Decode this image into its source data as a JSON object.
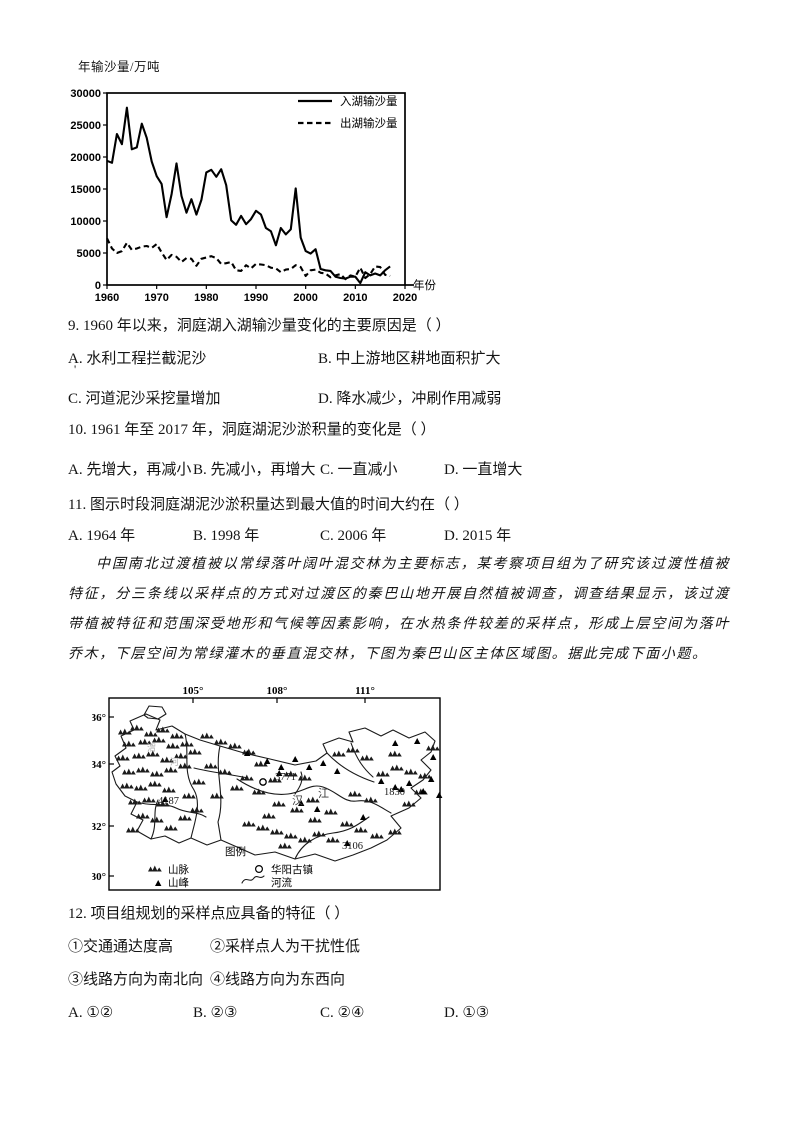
{
  "chart": {
    "ylabel": "年输沙量/万吨",
    "xlabel": "年份",
    "legend": {
      "in": "入湖输沙量",
      "out": "出湖输沙量"
    }
  },
  "chart_data": {
    "type": "line",
    "title": "",
    "xlabel": "年份",
    "ylabel": "年输沙量/万吨",
    "xlim": [
      1960,
      2020
    ],
    "ylim": [
      0,
      30000
    ],
    "x_ticks": [
      1960,
      1970,
      1980,
      1990,
      2000,
      2010,
      2020
    ],
    "y_ticks": [
      0,
      5000,
      10000,
      15000,
      20000,
      25000,
      30000
    ],
    "grid": false,
    "legend_position": "top-right",
    "years": [
      1960,
      1961,
      1962,
      1963,
      1964,
      1965,
      1966,
      1967,
      1968,
      1969,
      1970,
      1971,
      1972,
      1973,
      1974,
      1975,
      1976,
      1977,
      1978,
      1979,
      1980,
      1981,
      1982,
      1983,
      1984,
      1985,
      1986,
      1987,
      1988,
      1989,
      1990,
      1991,
      1992,
      1993,
      1994,
      1995,
      1996,
      1997,
      1998,
      1999,
      2000,
      2001,
      2002,
      2003,
      2004,
      2005,
      2006,
      2007,
      2008,
      2009,
      2010,
      2011,
      2012,
      2013,
      2014,
      2015,
      2016,
      2017
    ],
    "series": [
      {
        "name": "入湖输沙量",
        "style": "solid",
        "values": [
          19400,
          19100,
          23600,
          22000,
          27700,
          21200,
          21500,
          25200,
          23000,
          19300,
          17000,
          15800,
          10600,
          14200,
          19000,
          13900,
          11300,
          13400,
          11000,
          13300,
          17600,
          18000,
          16900,
          18100,
          15600,
          10100,
          9400,
          10800,
          9500,
          10300,
          11600,
          11000,
          8900,
          8400,
          6200,
          8900,
          7900,
          8700,
          15100,
          7400,
          5300,
          4900,
          5600,
          2500,
          2300,
          2200,
          1300,
          1100,
          1000,
          1300,
          1300,
          300,
          2000,
          1500,
          1800,
          1500,
          2300,
          2900
        ]
      },
      {
        "name": "出湖输沙量",
        "style": "dashed",
        "values": [
          7300,
          5700,
          5000,
          5300,
          6600,
          5500,
          5700,
          6000,
          6100,
          5800,
          6400,
          5100,
          3900,
          4700,
          4400,
          3600,
          4200,
          4100,
          3000,
          4100,
          4300,
          4500,
          4200,
          3300,
          3400,
          3600,
          2300,
          2200,
          3100,
          2600,
          3300,
          3200,
          3100,
          2700,
          2600,
          2000,
          2400,
          2500,
          3100,
          2800,
          1400,
          2300,
          2400,
          1900,
          1800,
          1200,
          1500,
          1700,
          900,
          1500,
          1300,
          2700,
          1100,
          1700,
          2900,
          2800,
          1600,
          1400
        ]
      }
    ]
  },
  "q9": {
    "text": "9. 1960 年以来，洞庭湖入湖输沙量变化的主要原因是（    ）",
    "options": [
      "A. 水利工程拦截泥沙",
      "B. 中上游地区耕地面积扩大",
      "C. 河道泥沙采挖量增加",
      "D. 降水减少，冲刷作用减弱"
    ],
    "stray_mark": "'"
  },
  "q10": {
    "text": "10. 1961 年至 2017 年，洞庭湖泥沙淤积量的变化是（    ）",
    "options": [
      "A. 先增大，再减小",
      "B. 先减小，再增大",
      "C. 一直减小",
      "D. 一直增大"
    ]
  },
  "q11": {
    "text": "11. 图示时段洞庭湖泥沙淤积量达到最大值的时间大约在（    ）",
    "options": [
      "A. 1964 年",
      "B. 1998 年",
      "C. 2006 年",
      "D. 2015 年"
    ]
  },
  "passage": "中国南北过渡植被以常绿落叶阔叶混交林为主要标志，某考察项目组为了研究该过渡性植被特征，分三条线以采样点的方式对过渡区的秦巴山地开展自然植被调查，调查结果显示，该过渡带植被特征和范围深受地形和气候等因素影响，在水热条件较差的采样点，形成上层空间为落叶乔木，下层空间为常绿灌木的垂直混交林，下图为秦巴山区主体区域图。据此完成下面小题。",
  "map": {
    "lon_ticks": [
      "105°",
      "108°",
      "111°"
    ],
    "lat_ticks": [
      "36°",
      "34°",
      "32°",
      "30°"
    ],
    "labels": {
      "p3771": "3771",
      "p1830": "1830",
      "p3106": "3106",
      "p4187": "4187",
      "han": "汉",
      "jiang": "江",
      "wei": "渭",
      "he": "河"
    },
    "legend": {
      "title": "图例",
      "mountain_range": "山脉",
      "peak": "山峰",
      "town": "华阳古镇",
      "river": "河流"
    }
  },
  "q12": {
    "text": "12. 项目组规划的采样点应具备的特征（    ）",
    "items": [
      "①交通通达度高",
      "②采样点人为干扰性低",
      "③线路方向为南北向",
      "④线路方向为东西向"
    ],
    "options": [
      "A. ①②",
      "B. ②③",
      "C. ②④",
      "D. ①③"
    ]
  }
}
